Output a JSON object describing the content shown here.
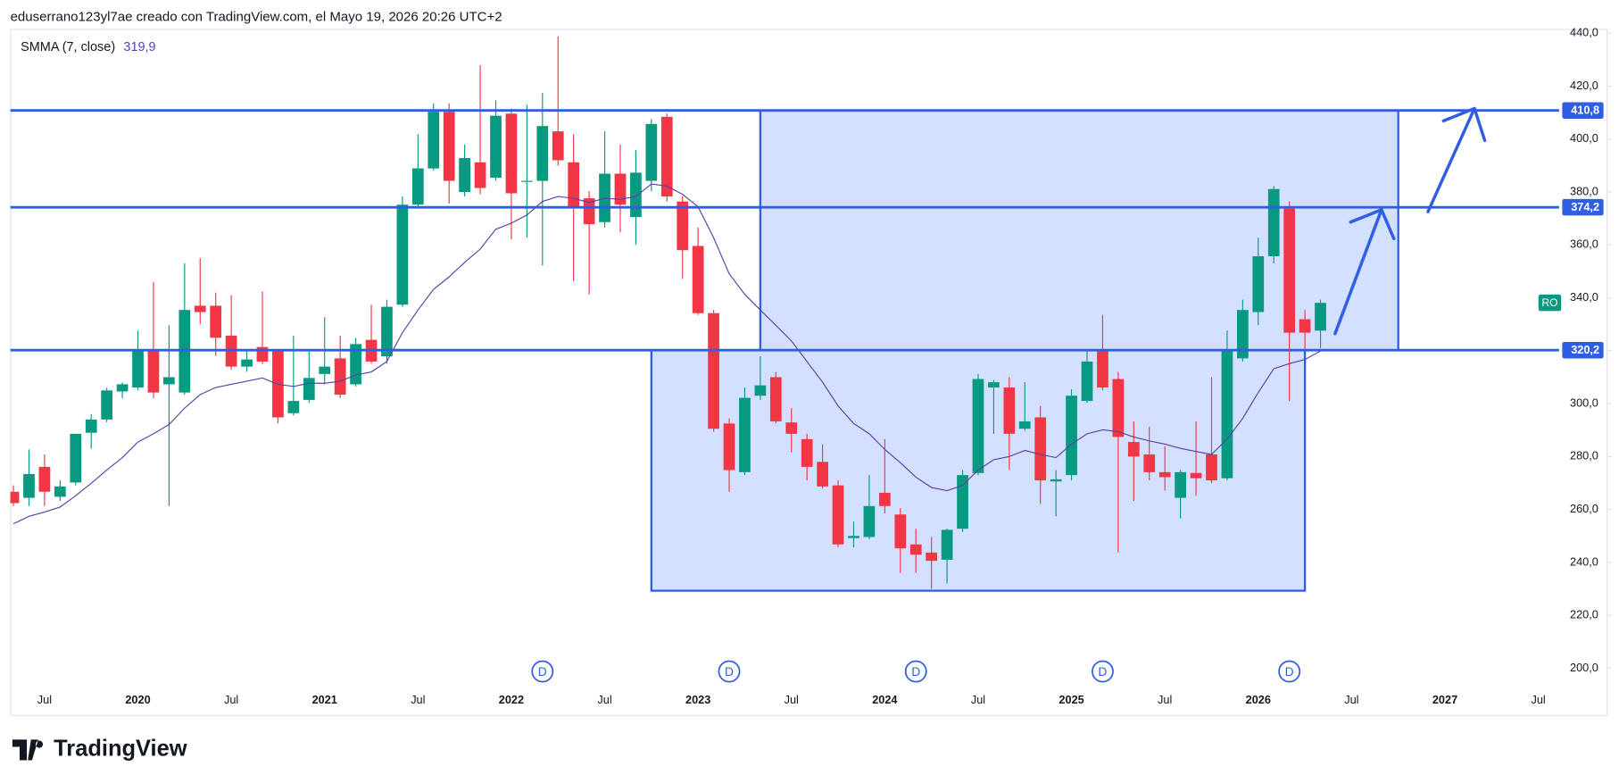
{
  "header": "eduserrano123yl7ae creado con TradingView.com, el Mayo 19, 2026 20:26 UTC+2",
  "logo": "TradingView",
  "chart_data": {
    "type": "candlestick",
    "symbol_badge": "RO",
    "x": [
      "2019-05",
      "2019-06",
      "2019-07",
      "2019-08",
      "2019-09",
      "2019-10",
      "2019-11",
      "2019-12",
      "2020-01",
      "2020-02",
      "2020-03",
      "2020-04",
      "2020-05",
      "2020-06",
      "2020-07",
      "2020-08",
      "2020-09",
      "2020-10",
      "2020-11",
      "2020-12",
      "2021-01",
      "2021-02",
      "2021-03",
      "2021-04",
      "2021-05",
      "2021-06",
      "2021-07",
      "2021-08",
      "2021-09",
      "2021-10",
      "2021-11",
      "2021-12",
      "2022-01",
      "2022-02",
      "2022-03",
      "2022-04",
      "2022-05",
      "2022-06",
      "2022-07",
      "2022-08",
      "2022-09",
      "2022-10",
      "2022-11",
      "2022-12",
      "2023-01",
      "2023-02",
      "2023-03",
      "2023-04",
      "2023-05",
      "2023-06",
      "2023-07",
      "2023-08",
      "2023-09",
      "2023-10",
      "2023-11",
      "2023-12",
      "2024-01",
      "2024-02",
      "2024-03",
      "2024-04",
      "2024-05",
      "2024-06",
      "2024-07",
      "2024-08",
      "2024-09",
      "2024-10",
      "2024-11",
      "2024-12",
      "2025-01",
      "2025-02",
      "2025-03",
      "2025-04",
      "2025-05",
      "2025-06",
      "2025-07",
      "2025-08",
      "2025-09",
      "2025-10",
      "2025-11",
      "2025-12",
      "2026-01",
      "2026-02",
      "2026-03",
      "2026-04",
      "2026-05"
    ],
    "open": [
      266.7,
      264.4,
      276.1,
      264.8,
      270.2,
      289,
      294,
      304.6,
      306.1,
      319.8,
      307.3,
      304.2,
      337,
      337,
      325.7,
      314,
      321.4,
      319.8,
      296.4,
      301.4,
      311.2,
      317.1,
      307.3,
      324.1,
      317.9,
      337.4,
      375.2,
      388.9,
      410.3,
      380,
      391.2,
      385.4,
      409.6,
      383.8,
      384.2,
      402.9,
      391.2,
      377.6,
      368.6,
      386.9,
      370.5,
      384.2,
      408.4,
      376.4,
      359.6,
      334.2,
      292.5,
      274.1,
      303,
      310,
      292.9,
      286.6,
      278,
      269.1,
      249.2,
      249.6,
      266.3,
      258.1,
      246.8,
      243.7,
      241,
      252.7,
      273.8,
      306.1,
      306.1,
      290.5,
      294.8,
      270.6,
      273,
      301,
      319.8,
      309.3,
      285.5,
      280.8,
      274.1,
      264.4,
      273.8,
      280.8,
      271.8,
      317.1,
      334.6,
      355.7,
      373.7,
      331.9,
      327.6
    ],
    "high": [
      269.1,
      282.7,
      280.8,
      271,
      288.6,
      296,
      306,
      308,
      327.6,
      346,
      329.6,
      353,
      355,
      342,
      341,
      320,
      342.4,
      320.6,
      325.7,
      319.8,
      332.7,
      325.7,
      324.9,
      337.4,
      339.3,
      378.3,
      401.8,
      413.5,
      413.5,
      397.9,
      427.9,
      414.6,
      411.5,
      413,
      417.4,
      438.8,
      401.8,
      380.3,
      402.9,
      397.9,
      395.9,
      407.6,
      409.6,
      378.3,
      366.6,
      335.4,
      294.4,
      306.1,
      317.9,
      312,
      298.3,
      288.6,
      284.7,
      271,
      255.4,
      273,
      286.6,
      260.5,
      252.7,
      249.6,
      252.7,
      274.9,
      311.2,
      308.9,
      310,
      308.1,
      299.1,
      274.9,
      305.4,
      319.8,
      333.5,
      312,
      293.3,
      291.3,
      283.9,
      274.9,
      293.3,
      310,
      327.6,
      339.3,
      362.7,
      382.2,
      376.4,
      335.4,
      339.3
    ],
    "low": [
      261.3,
      261.3,
      261.3,
      263.2,
      269.1,
      283,
      293,
      302,
      305,
      302,
      261.3,
      303.4,
      330,
      318,
      312.8,
      312,
      315,
      292.5,
      295.6,
      300.3,
      307.3,
      302.2,
      306.5,
      315.1,
      315.1,
      336.6,
      374.4,
      388.1,
      375.6,
      378.3,
      379.1,
      384.2,
      362,
      362.7,
      352.2,
      390,
      346.3,
      341.3,
      366.6,
      364.7,
      360,
      380.3,
      376.4,
      347.1,
      333.5,
      289.4,
      266.7,
      273,
      301.4,
      292.5,
      281.6,
      271,
      267.9,
      245.7,
      245.7,
      248.8,
      258.5,
      236,
      236,
      230,
      232,
      251.5,
      273,
      288.6,
      274.9,
      289.8,
      262.1,
      257.4,
      271,
      300.3,
      305,
      243.7,
      263.2,
      271,
      267.1,
      256.6,
      265.2,
      269.9,
      271,
      315.9,
      329.6,
      353,
      301,
      320.6,
      321
    ],
    "close": [
      262.4,
      273.4,
      266.7,
      268.7,
      288.6,
      294,
      305,
      307.3,
      319.8,
      304.2,
      310,
      335.4,
      334.6,
      324.9,
      314,
      316.7,
      315.9,
      294.8,
      301,
      309.7,
      314,
      303.4,
      322.5,
      315.9,
      336.6,
      375.2,
      388.9,
      410.3,
      384.2,
      392.8,
      381.5,
      408.8,
      379.5,
      384.2,
      404.9,
      392,
      374.4,
      367.8,
      386.9,
      375.2,
      387.3,
      405.7,
      378.3,
      358,
      334.2,
      290.5,
      274.9,
      302.2,
      306.9,
      293.3,
      288.6,
      276.1,
      268.7,
      246.8,
      250,
      261.3,
      261.3,
      245.3,
      242.9,
      240.6,
      252.3,
      273,
      309.3,
      308.1,
      288.6,
      293.3,
      271,
      271.4,
      303,
      315.9,
      306.1,
      287.4,
      280,
      274.1,
      272.2,
      274.1,
      271.8,
      271,
      319.8,
      335.4,
      355.7,
      381.1,
      326.8,
      326.8,
      338.1
    ],
    "up_color": "#089981",
    "down_color": "#f23645",
    "overlays": [
      {
        "name": "SMMA (7, close)",
        "color": "#5b3fa8",
        "legend_value": {
          "value": 319.9,
          "label": "319,9"
        },
        "values": [
          254.6,
          257.4,
          259,
          260.9,
          265.2,
          269.9,
          274.9,
          279.6,
          285.5,
          288.6,
          292.1,
          298.3,
          303.4,
          306.1,
          307.3,
          308.5,
          309.7,
          307.3,
          306.5,
          307.7,
          307.7,
          308.5,
          310.8,
          312,
          315.9,
          326.8,
          335.4,
          343.2,
          347.9,
          353.4,
          358.4,
          365.9,
          368.2,
          371.3,
          376.4,
          378.3,
          377.6,
          376,
          377.6,
          377.2,
          378.3,
          383,
          382.2,
          379.1,
          374.4,
          362.7,
          349.1,
          341.3,
          335.4,
          329.6,
          323.7,
          315.9,
          308.1,
          299.1,
          292.5,
          288.6,
          282.7,
          277.7,
          272.2,
          268.3,
          267.1,
          269.1,
          274.9,
          278.8,
          280,
          282.3,
          280.8,
          279.6,
          284.7,
          288.6,
          290.1,
          289.4,
          287.4,
          285.9,
          284.7,
          283.1,
          281.9,
          280.8,
          286.6,
          294.4,
          304.2,
          313.2,
          315.1,
          316.7,
          319.9
        ]
      }
    ],
    "ylim": [
      182.4,
      441.6
    ],
    "yticks": [
      {
        "value": 200,
        "label": "200,0"
      },
      {
        "value": 220,
        "label": "220,0"
      },
      {
        "value": 240,
        "label": "240,0"
      },
      {
        "value": 260,
        "label": "260,0"
      },
      {
        "value": 280,
        "label": "280,0"
      },
      {
        "value": 300,
        "label": "300,0"
      },
      {
        "value": 320,
        "label": "320,0"
      },
      {
        "value": 340,
        "label": "340,0"
      },
      {
        "value": 360,
        "label": "360,0"
      },
      {
        "value": 380,
        "label": "380,0"
      },
      {
        "value": 400,
        "label": "400,0"
      },
      {
        "value": 420,
        "label": "420,0"
      },
      {
        "value": 440,
        "label": "440,0"
      }
    ],
    "xticks": [
      {
        "value": "2019-07",
        "label": "Jul"
      },
      {
        "value": "2020-01",
        "label": "2020"
      },
      {
        "value": "2020-07",
        "label": "Jul"
      },
      {
        "value": "2021-01",
        "label": "2021"
      },
      {
        "value": "2021-07",
        "label": "Jul"
      },
      {
        "value": "2022-01",
        "label": "2022"
      },
      {
        "value": "2022-07",
        "label": "Jul"
      },
      {
        "value": "2023-01",
        "label": "2023"
      },
      {
        "value": "2023-07",
        "label": "Jul"
      },
      {
        "value": "2024-01",
        "label": "2024"
      },
      {
        "value": "2024-07",
        "label": "Jul"
      },
      {
        "value": "2025-01",
        "label": "2025"
      },
      {
        "value": "2025-07",
        "label": "Jul"
      },
      {
        "value": "2026-01",
        "label": "2026"
      },
      {
        "value": "2026-07",
        "label": "Jul"
      },
      {
        "value": "2027-01",
        "label": "2027"
      },
      {
        "value": "2027-07",
        "label": "Jul"
      }
    ],
    "levels": [
      {
        "value": 410.8,
        "label": "410,8"
      },
      {
        "value": 374.2,
        "label": "374,2"
      },
      {
        "value": 320.2,
        "label": "320,2"
      }
    ],
    "level_color": "#2f5fe0",
    "zones": [
      {
        "from": "2023-05",
        "to": "2026-10",
        "low": 320.2,
        "high": 410.8
      },
      {
        "from": "2022-10",
        "to": "2026-04",
        "low": 229.3,
        "high": 320.2
      }
    ],
    "zone_fill": "rgba(41,98,255,0.2)",
    "dividends": {
      "label": "D",
      "x": [
        "2022-03",
        "2023-03",
        "2024-03",
        "2025-03",
        "2026-03"
      ]
    }
  }
}
